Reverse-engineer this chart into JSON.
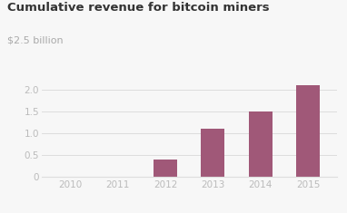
{
  "title": "Cumulative revenue for bitcoin miners",
  "subtitle": "$2.5 billion",
  "categories": [
    "2010",
    "2011",
    "2012",
    "2013",
    "2014",
    "2015"
  ],
  "values": [
    0,
    0,
    0.4,
    1.1,
    1.5,
    2.1
  ],
  "bar_color": "#a05878",
  "background_color": "#f7f7f7",
  "ylim": [
    0,
    2.5
  ],
  "yticks": [
    0,
    0.5,
    1.0,
    1.5,
    2.0
  ],
  "title_fontsize": 9.5,
  "subtitle_fontsize": 8,
  "tick_fontsize": 7.5,
  "tick_color": "#bbbbbb",
  "grid_color": "#dddddd",
  "title_color": "#333333",
  "subtitle_color": "#aaaaaa",
  "bar_width": 0.5
}
